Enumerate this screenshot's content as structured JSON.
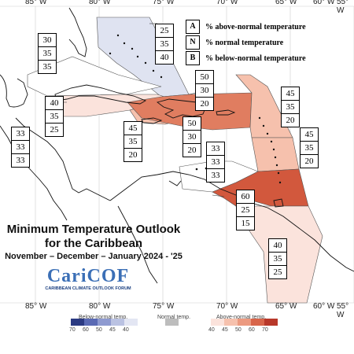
{
  "title": {
    "line1": "Minimum Temperature Outlook",
    "line2": "for the Caribbean",
    "line3": "November – December – January 2024 - '25"
  },
  "logo": {
    "name": "CariCOF",
    "subtitle": "CARIBBEAN CLIMATE OUTLOOK FORUM"
  },
  "legend": [
    {
      "key": "A",
      "text": "% above-normal temperature"
    },
    {
      "key": "N",
      "text": "% normal temperature"
    },
    {
      "key": "B",
      "text": "% below-normal temperature"
    }
  ],
  "longitudes_top": [
    "85° W",
    "80° W",
    "75° W",
    "70° W",
    "65° W",
    "60° W",
    "55° W"
  ],
  "longitudes_bottom": [
    "85° W",
    "80° W",
    "75° W",
    "70° W",
    "65° W",
    "60° W",
    "55° W"
  ],
  "regions": [
    {
      "name": "Bahamas",
      "values": [
        "25",
        "35",
        "40"
      ],
      "fill": "#dfe3f1"
    },
    {
      "name": "Belize/Yucatan",
      "values": [
        "30",
        "35",
        "35"
      ],
      "fill": "#ffffff"
    },
    {
      "name": "Cuba",
      "values": [
        "40",
        "35",
        "25"
      ],
      "fill": "#fbe3dc"
    },
    {
      "name": "Central America",
      "values": [
        "33",
        "33",
        "33"
      ],
      "fill": "#ffffff"
    },
    {
      "name": "Jamaica",
      "values": [
        "45",
        "35",
        "20"
      ],
      "fill": "#f6c1ad"
    },
    {
      "name": "Hispaniola",
      "values": [
        "50",
        "30",
        "20"
      ],
      "fill": "#e07d60"
    },
    {
      "name": "Turks and Caicos",
      "values": [
        "50",
        "30",
        "20"
      ],
      "fill": "#e07d60"
    },
    {
      "name": "Northern Leeward Islands",
      "values": [
        "45",
        "35",
        "20"
      ],
      "fill": "#f6c1ad"
    },
    {
      "name": "Windward Islands",
      "values": [
        "45",
        "35",
        "20"
      ],
      "fill": "#f6c1ad"
    },
    {
      "name": "ABC Islands",
      "values": [
        "33",
        "33",
        "33"
      ],
      "fill": "#ffffff"
    },
    {
      "name": "Trinidad",
      "values": [
        "60",
        "25",
        "15"
      ],
      "fill": "#d2583d"
    },
    {
      "name": "Guianas",
      "values": [
        "40",
        "35",
        "25"
      ],
      "fill": "#fbe3dc"
    }
  ],
  "colorbar": {
    "below_label": "Below-normal temp.",
    "normal_label": "Normal temp.",
    "above_label": "Above-normal temp.",
    "below_ticks": [
      "70",
      "60",
      "50",
      "45",
      "40"
    ],
    "above_ticks": [
      "40",
      "45",
      "50",
      "60",
      "70"
    ],
    "below_colors": [
      "#2b3a82",
      "#5a6ab4",
      "#8e9ad0",
      "#bac2e2",
      "#e3e6f3"
    ],
    "normal_color": "#bdbdbd",
    "above_colors": [
      "#fbe3dc",
      "#f6c1ad",
      "#ec9a80",
      "#d8654a",
      "#b8382a"
    ]
  }
}
